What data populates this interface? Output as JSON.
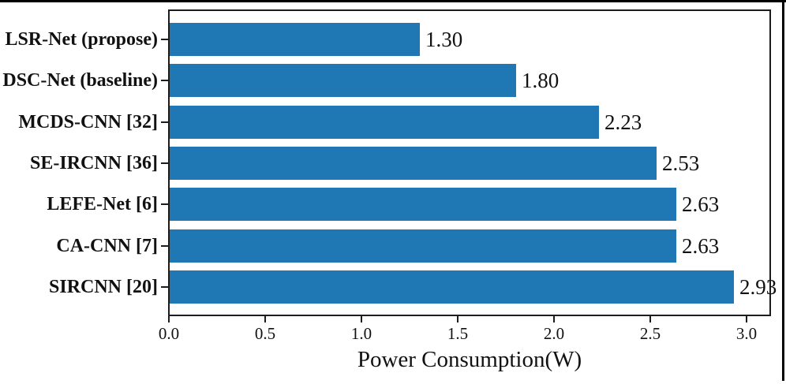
{
  "chart_data": {
    "type": "bar",
    "orientation": "horizontal",
    "title": "",
    "xlabel": "Power Consumption(W)",
    "ylabel": "",
    "categories": [
      "LSR-Net (propose)",
      "DSC-Net (baseline)",
      "MCDS-CNN [32]",
      "SE-IRCNN [36]",
      "LEFE-Net [6]",
      "CA-CNN [7]",
      "SIRCNN [20]"
    ],
    "values": [
      1.3,
      1.8,
      2.23,
      2.53,
      2.63,
      2.63,
      2.93
    ],
    "value_labels": [
      "1.30",
      "1.80",
      "2.23",
      "2.53",
      "2.63",
      "2.63",
      "2.93"
    ],
    "x_ticks": [
      "0.0",
      "0.5",
      "1.0",
      "1.5",
      "2.0",
      "2.5",
      "3.0"
    ],
    "x_tick_values": [
      0.0,
      0.5,
      1.0,
      1.5,
      2.0,
      2.5,
      3.0
    ],
    "xlim": [
      0.0,
      3.13
    ],
    "grid": false,
    "legend": false,
    "bar_color": "#1f77b4",
    "frame_color": "#1c1c1c",
    "text_color": "#111111",
    "rule_color": "#000000"
  }
}
